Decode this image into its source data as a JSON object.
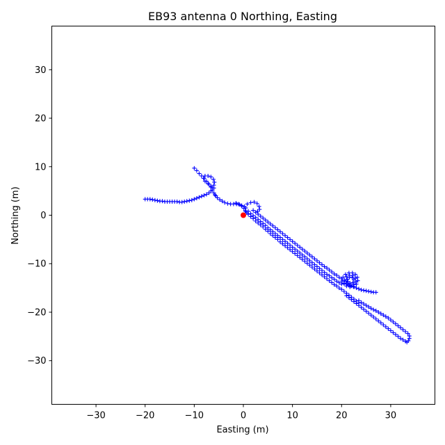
{
  "chart_data": {
    "type": "scatter",
    "title": "EB93 antenna 0 Northing, Easting",
    "xlabel": "Easting (m)",
    "ylabel": "Northing (m)",
    "xlim": [
      -39,
      39
    ],
    "ylim": [
      -39,
      39
    ],
    "xticks": [
      -30,
      -20,
      -10,
      0,
      10,
      20,
      30
    ],
    "yticks": [
      -30,
      -20,
      -10,
      0,
      10,
      20,
      30
    ],
    "xtick_labels": [
      "−30",
      "−20",
      "−10",
      "0",
      "10",
      "20",
      "30"
    ],
    "ytick_labels": [
      "−30",
      "−20",
      "−10",
      "0",
      "10",
      "20",
      "30"
    ],
    "grid": false,
    "legend": "none",
    "origin_marker": {
      "x": 0,
      "y": 0,
      "color": "#ff0000"
    },
    "series": [
      {
        "marker": "plus",
        "color": "#0000ff",
        "points": [
          [
            -10.0,
            9.7
          ],
          [
            -9.5,
            9.2
          ],
          [
            -9.0,
            8.6
          ],
          [
            -8.5,
            8.1
          ],
          [
            -8.0,
            7.6
          ],
          [
            -7.5,
            7.0
          ],
          [
            -7.0,
            6.4
          ],
          [
            -6.6,
            5.8
          ],
          [
            -6.3,
            5.2
          ],
          [
            -6.0,
            4.6
          ],
          [
            -5.8,
            4.2
          ],
          [
            -5.6,
            4.0
          ],
          [
            -5.3,
            3.6
          ],
          [
            -4.8,
            3.2
          ],
          [
            -4.3,
            2.9
          ],
          [
            -3.8,
            2.6
          ],
          [
            -3.2,
            2.4
          ],
          [
            -2.6,
            2.3
          ],
          [
            -2.0,
            2.3
          ],
          [
            -1.4,
            2.3
          ],
          [
            -0.8,
            2.2
          ],
          [
            -0.3,
            1.9
          ],
          [
            0.1,
            1.4
          ],
          [
            0.4,
            0.9
          ],
          [
            0.7,
            0.5
          ],
          [
            -20.0,
            3.3
          ],
          [
            -19.5,
            3.3
          ],
          [
            -19.0,
            3.3
          ],
          [
            -18.5,
            3.2
          ],
          [
            -18.0,
            3.1
          ],
          [
            -17.5,
            3.0
          ],
          [
            -17.0,
            2.9
          ],
          [
            -16.5,
            2.9
          ],
          [
            -16.0,
            2.8
          ],
          [
            -15.5,
            2.8
          ],
          [
            -15.0,
            2.8
          ],
          [
            -14.5,
            2.8
          ],
          [
            -14.0,
            2.8
          ],
          [
            -13.5,
            2.8
          ],
          [
            -13.0,
            2.7
          ],
          [
            -12.5,
            2.7
          ],
          [
            -12.0,
            2.8
          ],
          [
            -11.5,
            2.9
          ],
          [
            -11.0,
            3.0
          ],
          [
            -10.5,
            3.1
          ],
          [
            -10.0,
            3.3
          ],
          [
            -9.5,
            3.5
          ],
          [
            -9.0,
            3.7
          ],
          [
            -8.5,
            3.9
          ],
          [
            -8.0,
            4.1
          ],
          [
            -7.5,
            4.3
          ],
          [
            -7.0,
            4.6
          ],
          [
            -6.6,
            5.0
          ],
          [
            -6.3,
            5.6
          ],
          [
            -6.0,
            6.2
          ],
          [
            -5.9,
            6.8
          ],
          [
            -6.1,
            7.4
          ],
          [
            -6.6,
            7.9
          ],
          [
            -7.2,
            8.1
          ],
          [
            -7.8,
            8.1
          ],
          [
            -8.1,
            7.6
          ],
          [
            -7.8,
            7.0
          ],
          [
            -7.2,
            6.5
          ],
          [
            -6.6,
            6.0
          ],
          [
            -6.0,
            5.6
          ],
          [
            -1.5,
            2.5
          ],
          [
            -1.0,
            2.3
          ],
          [
            -0.4,
            2.0
          ],
          [
            0.2,
            1.8
          ],
          [
            0.8,
            2.3
          ],
          [
            1.5,
            2.6
          ],
          [
            2.2,
            2.7
          ],
          [
            2.8,
            2.4
          ],
          [
            3.2,
            1.8
          ],
          [
            3.3,
            1.2
          ],
          [
            2.9,
            0.8
          ],
          [
            0.5,
            1.5
          ],
          [
            1.0,
            0.8
          ],
          [
            1.5,
            0.3
          ],
          [
            2.0,
            -0.1
          ],
          [
            2.5,
            -0.5
          ],
          [
            3.0,
            -0.9
          ],
          [
            3.5,
            -1.3
          ],
          [
            4.0,
            -1.7
          ],
          [
            4.5,
            -2.1
          ],
          [
            5.0,
            -2.6
          ],
          [
            5.5,
            -3.0
          ],
          [
            6.0,
            -3.4
          ],
          [
            6.5,
            -3.8
          ],
          [
            7.0,
            -4.2
          ],
          [
            7.5,
            -4.6
          ],
          [
            8.0,
            -5.0
          ],
          [
            8.5,
            -5.4
          ],
          [
            9.0,
            -5.8
          ],
          [
            9.5,
            -6.2
          ],
          [
            10.0,
            -6.6
          ],
          [
            10.5,
            -7.0
          ],
          [
            11.0,
            -7.4
          ],
          [
            11.5,
            -7.8
          ],
          [
            12.0,
            -8.2
          ],
          [
            12.5,
            -8.6
          ],
          [
            13.0,
            -9.0
          ],
          [
            13.5,
            -9.4
          ],
          [
            14.0,
            -9.8
          ],
          [
            14.5,
            -10.2
          ],
          [
            15.0,
            -10.6
          ],
          [
            15.5,
            -11.0
          ],
          [
            16.0,
            -11.4
          ],
          [
            16.5,
            -11.8
          ],
          [
            17.0,
            -12.2
          ],
          [
            17.5,
            -12.5
          ],
          [
            18.0,
            -12.9
          ],
          [
            18.5,
            -13.2
          ],
          [
            19.0,
            -13.6
          ],
          [
            19.5,
            -13.9
          ],
          [
            20.0,
            -14.2
          ],
          [
            0.5,
            0.8
          ],
          [
            1.0,
            0.2
          ],
          [
            1.5,
            -0.3
          ],
          [
            2.0,
            -0.7
          ],
          [
            2.5,
            -1.2
          ],
          [
            3.0,
            -1.6
          ],
          [
            3.5,
            -2.0
          ],
          [
            4.0,
            -2.4
          ],
          [
            4.5,
            -2.9
          ],
          [
            5.0,
            -3.3
          ],
          [
            5.5,
            -3.8
          ],
          [
            6.0,
            -4.2
          ],
          [
            6.5,
            -4.6
          ],
          [
            7.0,
            -5.0
          ],
          [
            7.5,
            -5.5
          ],
          [
            8.0,
            -5.9
          ],
          [
            8.5,
            -6.3
          ],
          [
            9.0,
            -6.7
          ],
          [
            9.5,
            -7.1
          ],
          [
            10.0,
            -7.5
          ],
          [
            10.5,
            -7.9
          ],
          [
            11.0,
            -8.3
          ],
          [
            11.5,
            -8.7
          ],
          [
            12.0,
            -9.1
          ],
          [
            12.5,
            -9.5
          ],
          [
            13.0,
            -9.9
          ],
          [
            13.5,
            -10.3
          ],
          [
            14.0,
            -10.7
          ],
          [
            14.5,
            -11.1
          ],
          [
            15.0,
            -11.5
          ],
          [
            15.5,
            -11.9
          ],
          [
            16.0,
            -12.3
          ],
          [
            16.5,
            -12.7
          ],
          [
            17.0,
            -13.1
          ],
          [
            17.5,
            -13.5
          ],
          [
            18.0,
            -13.9
          ],
          [
            18.5,
            -14.3
          ],
          [
            19.0,
            -14.6
          ],
          [
            19.5,
            -15.0
          ],
          [
            20.0,
            -15.3
          ],
          [
            20.5,
            -15.7
          ],
          [
            21.0,
            -16.1
          ],
          [
            21.5,
            -16.5
          ],
          [
            22.0,
            -16.9
          ],
          [
            22.5,
            -17.3
          ],
          [
            23.0,
            -17.7
          ],
          [
            23.5,
            -18.1
          ],
          [
            2.0,
            1.0
          ],
          [
            2.5,
            0.6
          ],
          [
            3.0,
            0.2
          ],
          [
            3.5,
            -0.2
          ],
          [
            4.0,
            -0.6
          ],
          [
            4.5,
            -1.0
          ],
          [
            5.0,
            -1.4
          ],
          [
            5.5,
            -1.8
          ],
          [
            6.0,
            -2.2
          ],
          [
            6.5,
            -2.6
          ],
          [
            7.0,
            -3.0
          ],
          [
            7.5,
            -3.4
          ],
          [
            8.0,
            -3.8
          ],
          [
            8.5,
            -4.2
          ],
          [
            9.0,
            -4.6
          ],
          [
            9.5,
            -5.0
          ],
          [
            10.0,
            -5.4
          ],
          [
            10.5,
            -5.8
          ],
          [
            11.0,
            -6.2
          ],
          [
            11.5,
            -6.6
          ],
          [
            12.0,
            -7.0
          ],
          [
            12.5,
            -7.4
          ],
          [
            13.0,
            -7.8
          ],
          [
            13.5,
            -8.2
          ],
          [
            14.0,
            -8.6
          ],
          [
            14.5,
            -9.0
          ],
          [
            15.0,
            -9.4
          ],
          [
            15.5,
            -9.8
          ],
          [
            16.0,
            -10.2
          ],
          [
            16.5,
            -10.6
          ],
          [
            17.0,
            -10.9
          ],
          [
            17.5,
            -11.3
          ],
          [
            18.0,
            -11.7
          ],
          [
            18.5,
            -12.1
          ],
          [
            19.0,
            -12.4
          ],
          [
            19.5,
            -12.8
          ],
          [
            20.0,
            -13.1
          ],
          [
            20.1,
            -13.6
          ],
          [
            20.3,
            -12.8
          ],
          [
            20.8,
            -12.2
          ],
          [
            21.5,
            -11.9
          ],
          [
            22.2,
            -11.9
          ],
          [
            22.8,
            -12.2
          ],
          [
            23.2,
            -12.8
          ],
          [
            23.3,
            -13.5
          ],
          [
            23.0,
            -14.2
          ],
          [
            22.4,
            -14.7
          ],
          [
            21.7,
            -14.8
          ],
          [
            21.0,
            -14.6
          ],
          [
            20.5,
            -14.1
          ],
          [
            20.6,
            -13.4
          ],
          [
            21.0,
            -12.7
          ],
          [
            21.6,
            -12.4
          ],
          [
            22.3,
            -12.5
          ],
          [
            22.8,
            -13.0
          ],
          [
            22.9,
            -13.7
          ],
          [
            22.5,
            -14.3
          ],
          [
            21.8,
            -14.5
          ],
          [
            21.2,
            -14.2
          ],
          [
            20.9,
            -13.6
          ],
          [
            21.2,
            -13.2
          ],
          [
            21.6,
            -12.8
          ],
          [
            22.2,
            -12.9
          ],
          [
            22.5,
            -13.3
          ],
          [
            22.3,
            -13.9
          ],
          [
            21.7,
            -14.0
          ],
          [
            21.3,
            -13.7
          ],
          [
            20.5,
            -14.0
          ],
          [
            21.0,
            -14.2
          ],
          [
            21.5,
            -14.4
          ],
          [
            22.0,
            -14.6
          ],
          [
            22.5,
            -14.8
          ],
          [
            23.0,
            -15.0
          ],
          [
            23.5,
            -15.2
          ],
          [
            24.0,
            -15.4
          ],
          [
            24.5,
            -15.5
          ],
          [
            25.0,
            -15.6
          ],
          [
            25.5,
            -15.7
          ],
          [
            26.0,
            -15.8
          ],
          [
            26.5,
            -15.9
          ],
          [
            27.0,
            -15.9
          ],
          [
            23.5,
            -17.6
          ],
          [
            24.0,
            -18.0
          ],
          [
            24.5,
            -18.3
          ],
          [
            25.0,
            -18.6
          ],
          [
            25.5,
            -18.9
          ],
          [
            26.0,
            -19.2
          ],
          [
            26.5,
            -19.5
          ],
          [
            27.0,
            -19.7
          ],
          [
            27.5,
            -20.0
          ],
          [
            28.0,
            -20.3
          ],
          [
            28.5,
            -20.6
          ],
          [
            29.0,
            -20.9
          ],
          [
            29.5,
            -21.2
          ],
          [
            30.0,
            -21.6
          ],
          [
            30.5,
            -22.0
          ],
          [
            31.0,
            -22.4
          ],
          [
            31.5,
            -22.8
          ],
          [
            32.0,
            -23.2
          ],
          [
            32.5,
            -23.6
          ],
          [
            33.0,
            -24.0
          ],
          [
            33.5,
            -24.4
          ],
          [
            33.8,
            -24.9
          ],
          [
            33.8,
            -25.4
          ],
          [
            33.6,
            -25.9
          ],
          [
            33.3,
            -26.2
          ],
          [
            33.0,
            -26.0
          ],
          [
            32.5,
            -25.7
          ],
          [
            32.0,
            -25.4
          ],
          [
            31.5,
            -25.0
          ],
          [
            31.0,
            -24.6
          ],
          [
            30.5,
            -24.2
          ],
          [
            30.0,
            -23.8
          ],
          [
            29.5,
            -23.4
          ],
          [
            29.0,
            -23.0
          ],
          [
            28.5,
            -22.6
          ],
          [
            28.0,
            -22.2
          ],
          [
            27.5,
            -21.8
          ],
          [
            27.0,
            -21.4
          ],
          [
            26.5,
            -21.0
          ],
          [
            26.0,
            -20.6
          ],
          [
            25.5,
            -20.2
          ],
          [
            25.0,
            -19.8
          ],
          [
            24.5,
            -19.4
          ],
          [
            24.0,
            -19.0
          ],
          [
            23.5,
            -18.6
          ],
          [
            23.0,
            -18.2
          ],
          [
            22.5,
            -17.8
          ],
          [
            22.0,
            -17.4
          ],
          [
            21.5,
            -17.0
          ],
          [
            21.0,
            -16.6
          ]
        ]
      }
    ]
  }
}
